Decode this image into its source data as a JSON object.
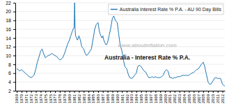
{
  "chart_data": {
    "type": "line",
    "title": "Australia - Interest Rate % P.A.",
    "annotations": [
      "www.aboutinflation.com"
    ],
    "x": [
      1969.0,
      1969.3,
      1969.6,
      1970.0,
      1970.3,
      1970.6,
      1971.0,
      1971.3,
      1971.6,
      1972.0,
      1972.3,
      1972.6,
      1973.0,
      1973.3,
      1973.6,
      1974.0,
      1974.3,
      1974.6,
      1975.0,
      1975.3,
      1975.6,
      1976.0,
      1976.3,
      1976.6,
      1977.0,
      1977.3,
      1977.6,
      1978.0,
      1978.3,
      1978.6,
      1979.0,
      1979.3,
      1979.6,
      1980.0,
      1980.3,
      1980.6,
      1981.0,
      1981.1,
      1981.2,
      1981.3,
      1981.5,
      1981.7,
      1982.0,
      1982.3,
      1982.6,
      1983.0,
      1983.3,
      1983.6,
      1984.0,
      1984.3,
      1984.6,
      1985.0,
      1985.3,
      1985.6,
      1986.0,
      1986.2,
      1986.4,
      1986.6,
      1986.8,
      1987.0,
      1987.2,
      1987.4,
      1987.6,
      1987.8,
      1988.0,
      1988.3,
      1988.6,
      1989.0,
      1989.3,
      1989.6,
      1990.0,
      1990.3,
      1990.6,
      1991.0,
      1991.3,
      1991.6,
      1992.0,
      1992.3,
      1992.6,
      1993.0,
      1993.3,
      1993.6,
      1994.0,
      1994.3,
      1994.6,
      1995.0,
      1995.3,
      1995.6,
      1996.0,
      1996.3,
      1996.6,
      1997.0,
      1997.3,
      1997.6,
      1998.0,
      1998.3,
      1998.6,
      1999.0,
      1999.3,
      1999.6,
      2000.0,
      2000.3,
      2000.6,
      2001.0,
      2001.3,
      2001.6,
      2002.0,
      2002.3,
      2002.6,
      2003.0,
      2003.3,
      2003.6,
      2004.0,
      2004.3,
      2004.6,
      2005.0,
      2005.3,
      2005.6,
      2006.0,
      2006.3,
      2006.6,
      2007.0,
      2007.3,
      2007.6,
      2008.0,
      2008.3,
      2008.6,
      2009.0,
      2009.3,
      2009.6,
      2010.0,
      2010.3,
      2010.6,
      2011.0,
      2011.3,
      2011.6,
      2012.0,
      2012.3,
      2012.6
    ],
    "series": [
      {
        "name": "Australia Interest Rate % P.A. - AU 90 Day Bills",
        "values": [
          7.0,
          6.8,
          6.5,
          6.8,
          6.5,
          6.2,
          5.8,
          5.5,
          5.2,
          5.0,
          5.2,
          5.5,
          7.0,
          8.5,
          9.5,
          11.0,
          11.5,
          10.5,
          9.5,
          9.8,
          10.0,
          10.2,
          10.5,
          10.3,
          10.0,
          9.8,
          9.5,
          9.0,
          9.2,
          9.5,
          10.5,
          11.5,
          12.5,
          13.5,
          14.5,
          15.5,
          16.5,
          22.0,
          16.0,
          14.5,
          14.0,
          13.5,
          14.5,
          13.5,
          12.0,
          11.5,
          10.5,
          10.0,
          10.5,
          11.0,
          11.5,
          14.0,
          16.0,
          17.0,
          17.5,
          16.0,
          15.0,
          14.5,
          14.0,
          14.5,
          13.5,
          13.0,
          12.5,
          12.5,
          13.0,
          14.5,
          16.0,
          18.5,
          19.0,
          18.0,
          17.5,
          15.0,
          12.5,
          11.0,
          9.0,
          7.5,
          7.0,
          5.8,
          5.0,
          4.8,
          5.0,
          5.5,
          6.0,
          7.5,
          7.8,
          7.5,
          7.0,
          6.5,
          6.2,
          5.5,
          5.0,
          5.0,
          5.2,
          5.0,
          5.2,
          5.0,
          5.0,
          5.0,
          5.2,
          5.5,
          6.5,
          6.8,
          6.5,
          5.0,
          5.0,
          4.8,
          5.0,
          5.0,
          5.2,
          5.2,
          5.3,
          5.5,
          5.5,
          5.5,
          5.5,
          5.5,
          5.8,
          6.0,
          6.2,
          6.5,
          6.8,
          7.0,
          7.5,
          8.0,
          8.5,
          7.5,
          6.0,
          4.0,
          3.5,
          3.5,
          4.2,
          4.8,
          5.0,
          4.8,
          4.8,
          4.8,
          3.5,
          3.2,
          3.0
        ]
      }
    ],
    "xlim": [
      1968.7,
      2012.5
    ],
    "xticks": [
      1969,
      1970,
      1971,
      1972,
      1973,
      1974,
      1975,
      1976,
      1977,
      1978,
      1979,
      1980,
      1981,
      1982,
      1983,
      1984,
      1985,
      1986,
      1987,
      1988,
      1989,
      1990,
      1991,
      1992,
      1993,
      1994,
      1995,
      1996,
      1997,
      1998,
      1999,
      2000,
      2001,
      2002,
      2003,
      2004,
      2005,
      2006,
      2007,
      2008,
      2009,
      2010,
      2011,
      2012
    ],
    "ylim": [
      2,
      22
    ],
    "yticks": [
      2,
      4,
      6,
      8,
      10,
      12,
      14,
      16,
      18,
      20,
      22
    ],
    "grid": "y",
    "legend": "upper right"
  }
}
